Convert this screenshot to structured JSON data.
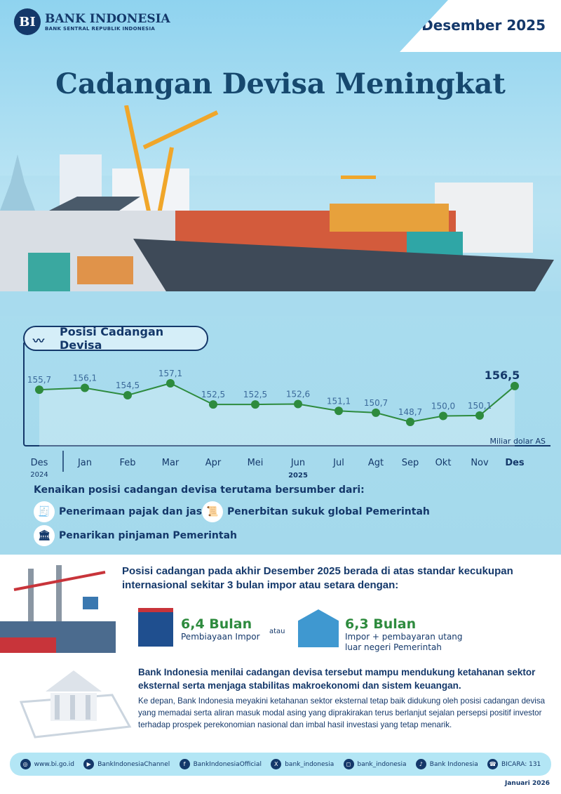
{
  "header": {
    "logo_name": "BANK INDONESIA",
    "logo_sub": "BANK SENTRAL REPUBLIK INDONESIA",
    "period": "Desember 2025",
    "title": "Cadangan Devisa Meningkat"
  },
  "chart_data": {
    "type": "line",
    "title": "Posisi Cadangan Devisa",
    "unit": "Miliar dolar AS",
    "categories": [
      "Des",
      "Jan",
      "Feb",
      "Mar",
      "Apr",
      "Mei",
      "Jun",
      "Jul",
      "Agt",
      "Sep",
      "Okt",
      "Nov",
      "Des"
    ],
    "year_labels": [
      "2024",
      "2025"
    ],
    "labels": [
      "155,7",
      "156,1",
      "154,5",
      "157,1",
      "152,5",
      "152,5",
      "152,6",
      "151,1",
      "150,7",
      "148,7",
      "150,0",
      "150,1",
      "156,5"
    ],
    "values": [
      155.7,
      156.1,
      154.5,
      157.1,
      152.5,
      152.5,
      152.6,
      151.1,
      150.7,
      148.7,
      150.0,
      150.1,
      156.5
    ],
    "line_color": "#2e8b3e"
  },
  "sources": {
    "heading": "Kenaikan posisi cadangan devisa terutama bersumber dari:",
    "items": [
      "Penerimaan pajak dan jasa",
      "Penerbitan sukuk global Pemerintah",
      "Penarikan pinjaman Pemerintah"
    ]
  },
  "adequacy": {
    "text": "Posisi cadangan pada akhir Desember 2025  berada di atas standar kecukupan internasional sekitar 3 bulan impor atau setara dengan:",
    "m1_value": "6,4 Bulan",
    "m1_label": "Pembiayaan Impor",
    "or": "atau",
    "m2_value": "6,3 Bulan",
    "m2_label": "Impor + pembayaran utang luar negeri Pemerintah"
  },
  "assessment": {
    "bold": "Bank Indonesia menilai cadangan devisa tersebut mampu mendukung ketahanan sektor eksternal serta menjaga stabilitas makroekonomi dan sistem keuangan.",
    "body": "Ke depan, Bank Indonesia meyakini ketahanan sektor eksternal tetap baik didukung oleh posisi cadangan devisa yang memadai serta aliran masuk modal asing yang diprakirakan terus berlanjut sejalan persepsi positif investor terhadap prospek perekonomian nasional dan imbal hasil investasi yang tetap menarik."
  },
  "footer": {
    "links": [
      "www.bi.go.id",
      "BankIndonesiaChannel",
      "BankIndonesiaOfficial",
      "bank_indonesia",
      "bank_indonesia",
      "Bank Indonesia",
      "BICARA: 131"
    ],
    "date": "Januari 2026"
  }
}
